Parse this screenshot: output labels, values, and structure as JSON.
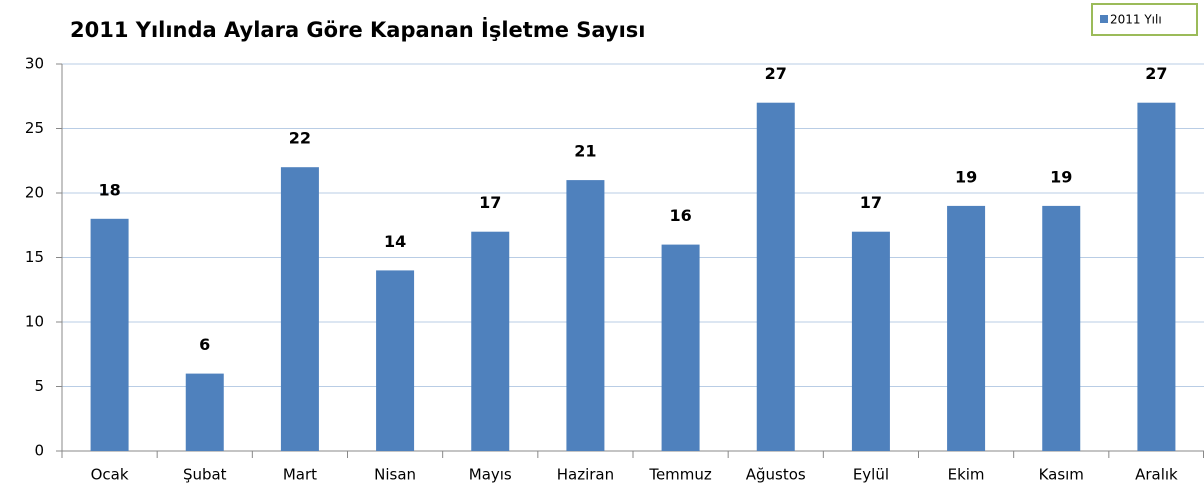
{
  "chart_data": {
    "type": "bar",
    "title": "2011 Yılında Aylara Göre Kapanan İşletme Sayısı",
    "categories": [
      "Ocak",
      "Şubat",
      "Mart",
      "Nisan",
      "Mayıs",
      "Haziran",
      "Temmuz",
      "Ağustos",
      "Eylül",
      "Ekim",
      "Kasım",
      "Aralık"
    ],
    "series": [
      {
        "name": "2011 Yılı",
        "color": "#4f81bd",
        "values": [
          18,
          6,
          22,
          14,
          17,
          21,
          16,
          27,
          17,
          19,
          19,
          27
        ]
      }
    ],
    "ylim": [
      0,
      30
    ],
    "yticks": [
      0,
      5,
      10,
      15,
      20,
      25,
      30
    ],
    "grid": true,
    "legend": "top-right"
  }
}
